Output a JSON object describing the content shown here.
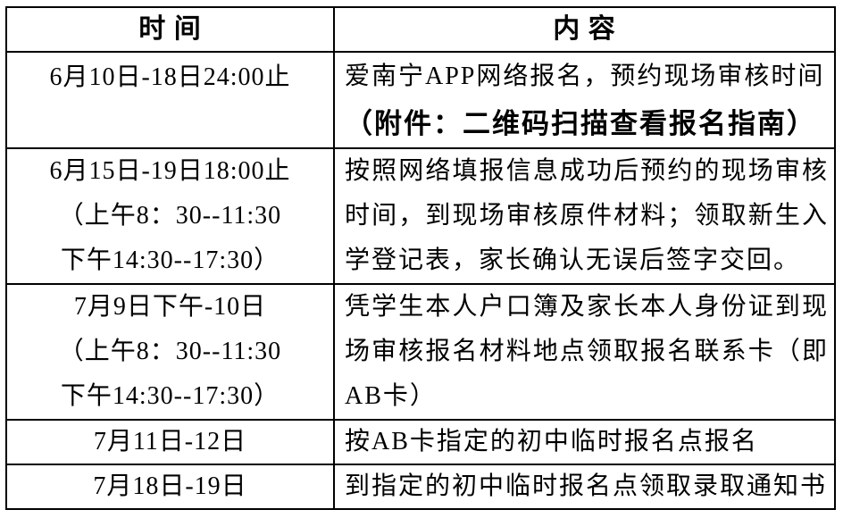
{
  "colors": {
    "background": "#ffffff",
    "border": "#000000",
    "text": "#000000"
  },
  "table": {
    "header": {
      "time": "时 间",
      "content": "内 容"
    },
    "rows": [
      {
        "time_lines": [
          "6月10日-18日24:00止"
        ],
        "content_line": "爱南宁APP网络报名，预约现场审核时间",
        "attachment_line": "（附件：二维码扫描查看报名指南）"
      },
      {
        "time_lines": [
          "6月15日-19日18:00止",
          "（上午8：30--11:30",
          "下午14:30--17:30）"
        ],
        "content": "按照网络填报信息成功后预约的现场审核时间，到现场审核原件材料；领取新生入学登记表，家长确认无误后签字交回。"
      },
      {
        "time_lines": [
          "7月9日下午-10日",
          "（上午8：30--11:30",
          "下午14:30--17:30）"
        ],
        "content": "凭学生本人户口簿及家长本人身份证到现场审核报名材料地点领取报名联系卡（即AB卡）"
      },
      {
        "time_lines": [
          "7月11日-12日"
        ],
        "content": "按AB卡指定的初中临时报名点报名"
      },
      {
        "time_lines": [
          "7月18日-19日"
        ],
        "content": "到指定的初中临时报名点领取录取通知书"
      }
    ]
  }
}
